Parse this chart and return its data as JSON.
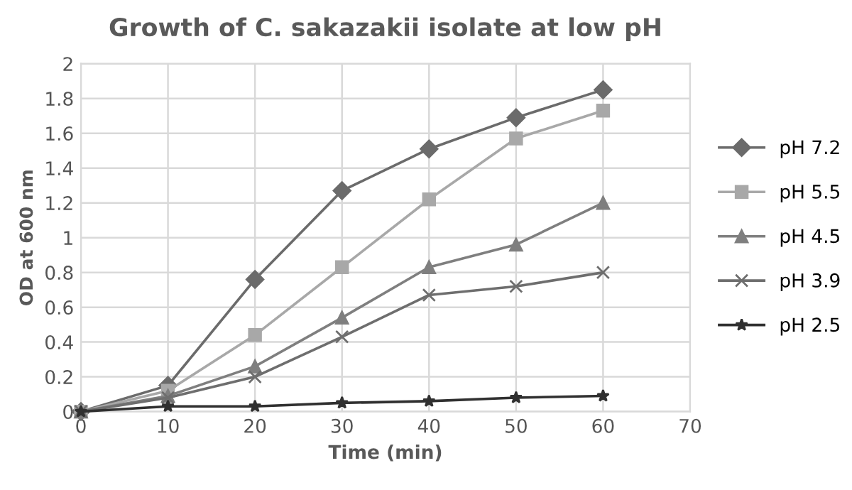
{
  "chart_data": {
    "type": "line",
    "title": "Growth of C. sakazakii isolate at low pH",
    "xlabel": "Time (min)",
    "ylabel": "OD at 600 nm",
    "x": [
      0,
      10,
      20,
      30,
      40,
      50,
      60
    ],
    "series": [
      {
        "name": "pH 7.2",
        "color": "#6b6b6b",
        "marker": "diamond",
        "values": [
          0,
          0.15,
          0.76,
          1.27,
          1.51,
          1.69,
          1.85
        ]
      },
      {
        "name": "pH 5.5",
        "color": "#a8a8a8",
        "marker": "square",
        "values": [
          0,
          0.12,
          0.44,
          0.83,
          1.22,
          1.57,
          1.73
        ]
      },
      {
        "name": "pH 4.5",
        "color": "#7f7f7f",
        "marker": "triangle",
        "values": [
          0,
          0.09,
          0.26,
          0.54,
          0.83,
          0.96,
          1.2
        ]
      },
      {
        "name": "pH 3.9",
        "color": "#6e6e6e",
        "marker": "cross",
        "values": [
          0,
          0.08,
          0.2,
          0.43,
          0.67,
          0.72,
          0.8
        ]
      },
      {
        "name": "pH 2.5",
        "color": "#303030",
        "marker": "star",
        "values": [
          0,
          0.03,
          0.03,
          0.05,
          0.06,
          0.08,
          0.09
        ]
      }
    ],
    "xlim": [
      0,
      70
    ],
    "xticks": [
      0,
      10,
      20,
      30,
      40,
      50,
      60,
      70
    ],
    "ylim": [
      0,
      2
    ],
    "yticks": [
      0,
      0.2,
      0.4,
      0.6,
      0.8,
      1,
      1.2,
      1.4,
      1.6,
      1.8,
      2
    ],
    "grid": true,
    "legend": "right",
    "line_style": "solid"
  }
}
